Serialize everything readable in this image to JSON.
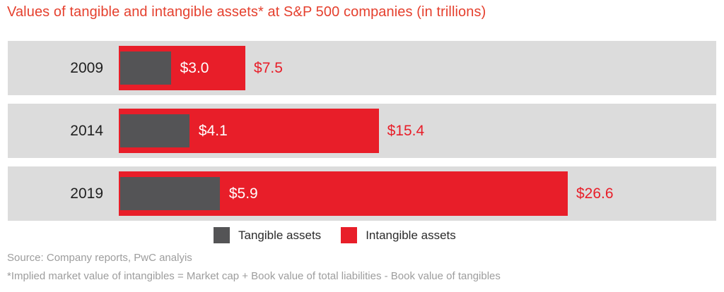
{
  "title": "Values of tangible and intangible assets* at S&P 500 companies (in trillions)",
  "chart_data": {
    "type": "bar",
    "orientation": "horizontal",
    "title": "Values of tangible and intangible assets* at S&P 500 companies (in trillions)",
    "unit": "USD trillions",
    "categories": [
      "2009",
      "2014",
      "2019"
    ],
    "series": [
      {
        "name": "Tangible assets",
        "color": "#545456",
        "values": [
          3.0,
          4.1,
          5.9
        ],
        "data_labels": [
          "$3.0",
          "$4.1",
          "$5.9"
        ]
      },
      {
        "name": "Intangible assets",
        "color": "#e81e29",
        "values": [
          7.5,
          15.4,
          26.6
        ],
        "data_labels": [
          "$7.5",
          "$15.4",
          "$26.6"
        ]
      }
    ],
    "xlim": [
      0,
      26.6
    ],
    "grid": false,
    "legend_position": "bottom"
  },
  "footer": {
    "source": "Source: Company reports, PwC analyis",
    "footnote": "*Implied market value of intangibles = Market cap + Book value of total liabilities - Book value of tangibles"
  },
  "colors": {
    "title": "#e5402e",
    "band_bg": "#dcdcdc",
    "tangible": "#545456",
    "intangible": "#e81e29",
    "value_label_inside": "#ffffff",
    "value_label_outside": "#e81e29",
    "category_text": "#1f1f1f",
    "legend_text": "#2b2b2b",
    "footer_text": "#9d9d9d"
  }
}
